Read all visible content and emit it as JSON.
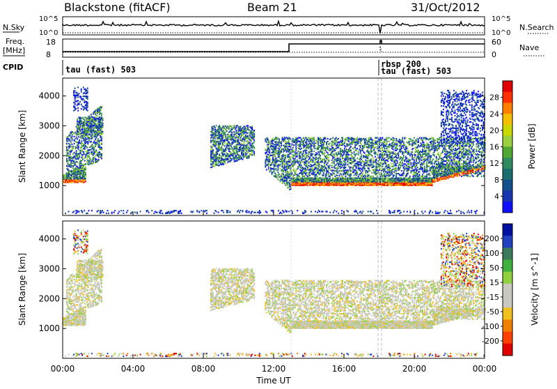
{
  "header": {
    "station": "Blackstone (fitACF)",
    "beam": "Beam 21",
    "date": "31/Oct/2012"
  },
  "top_panels": {
    "nsky_label": "N.Sky",
    "nsky_ticks": [
      "10^5",
      "10^0"
    ],
    "nsearch_label": "N.Search",
    "nsearch_ticks": [
      "10^5",
      "10^0"
    ],
    "freq_label": "Freq.",
    "freq_unit": "[MHz]",
    "freq_ticks": [
      "18",
      "8"
    ],
    "nave_label": "Nave",
    "nave_ticks": [
      "60",
      "0"
    ],
    "cpid_label": "CPID",
    "cpid_segments": [
      "tau (fast) 503",
      "rbsp 200",
      "tau (fast) 503"
    ]
  },
  "chart_data": [
    {
      "type": "heatmap",
      "panel": "power",
      "ylabel": "Slant Range [km]",
      "xlabel": "",
      "yticks": [
        1000,
        2000,
        3000,
        4000
      ],
      "ylim": [
        0,
        4600
      ],
      "xlim_hours": [
        0,
        24
      ],
      "colorbar_label": "Power [dB]",
      "colorbar_ticks": [
        "28",
        "24",
        "20",
        "16",
        "12",
        "8",
        "4"
      ],
      "colorbar_colors": [
        "#e00000",
        "#ff3000",
        "#ff8000",
        "#f4c000",
        "#c8d800",
        "#9ad040",
        "#50a830",
        "#308a60",
        "#1a6d6d",
        "#15508c",
        "#1a35b0",
        "#1010ff"
      ],
      "background_scatter_bands_km": [
        [
          1100,
          1300
        ],
        [
          1900,
          2300
        ],
        [
          2600,
          3200
        ]
      ],
      "strong_echo_band_km": [
        900,
        1250
      ]
    },
    {
      "type": "heatmap",
      "panel": "velocity",
      "ylabel": "Slant Range [km]",
      "xlabel": "Time UT",
      "yticks": [
        1000,
        2000,
        3000,
        4000
      ],
      "ylim": [
        0,
        4600
      ],
      "xlim_hours": [
        0,
        24
      ],
      "xtick_labels": [
        "00:00",
        "04:00",
        "08:00",
        "12:00",
        "16:00",
        "20:00",
        "00:00"
      ],
      "colorbar_label": "Velocity [m s^-1]",
      "colorbar_ticks": [
        "200",
        "100",
        "50",
        "15",
        "-15",
        "-50",
        "-100",
        "-200"
      ],
      "colorbar_colors": [
        "#0010a0",
        "#2040c0",
        "#3a7a5a",
        "#40b040",
        "#90d040",
        "#c8c8c0",
        "#c8c8c0",
        "#f0c020",
        "#f08000",
        "#ff4000",
        "#e00000"
      ]
    }
  ],
  "xaxis": {
    "title": "Time UT",
    "ticks": [
      "00:00",
      "04:00",
      "08:00",
      "12:00",
      "16:00",
      "20:00",
      "00:00"
    ]
  }
}
